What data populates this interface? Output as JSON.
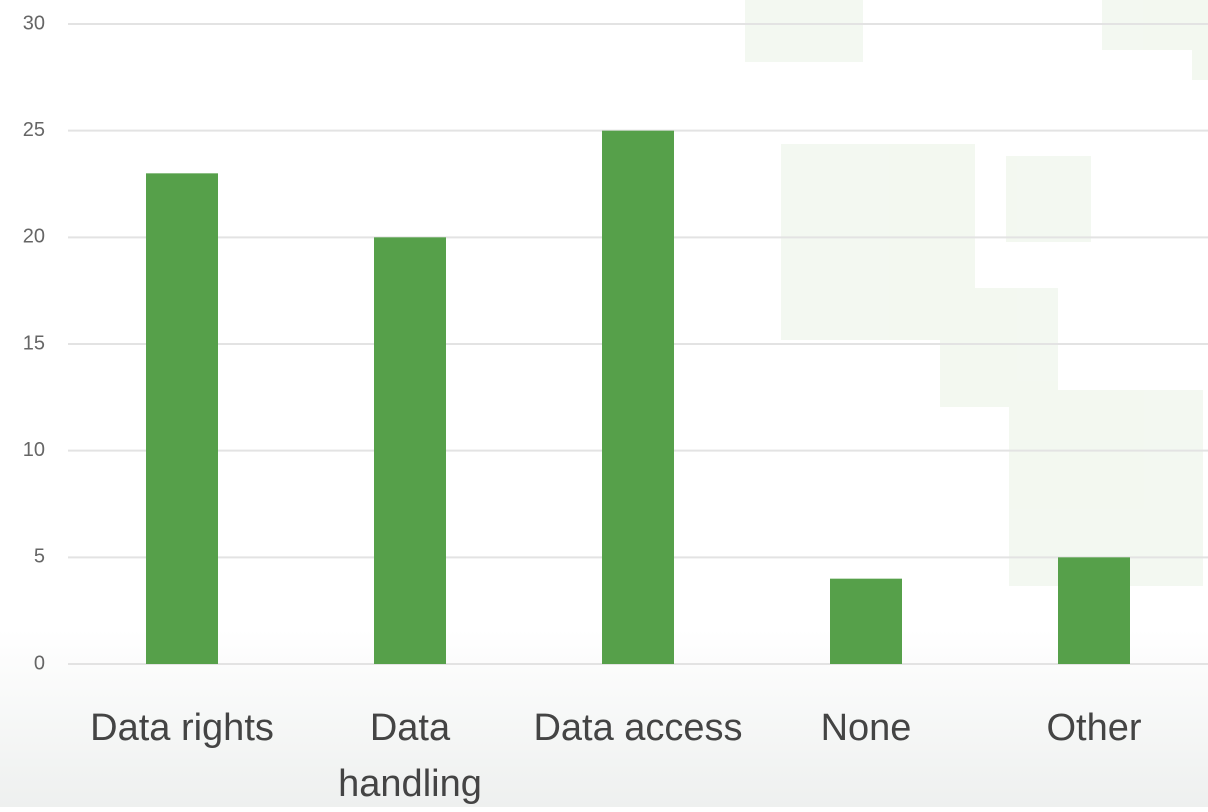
{
  "chart_data": {
    "type": "bar",
    "categories": [
      "Data rights",
      "Data handling",
      "Data access",
      "None",
      "Other"
    ],
    "values": [
      23,
      20,
      25,
      4,
      5
    ],
    "color": "#56a04a",
    "ylim": [
      0,
      30
    ],
    "yticks": [
      0,
      5,
      10,
      15,
      20,
      25,
      30
    ],
    "grid": true
  }
}
